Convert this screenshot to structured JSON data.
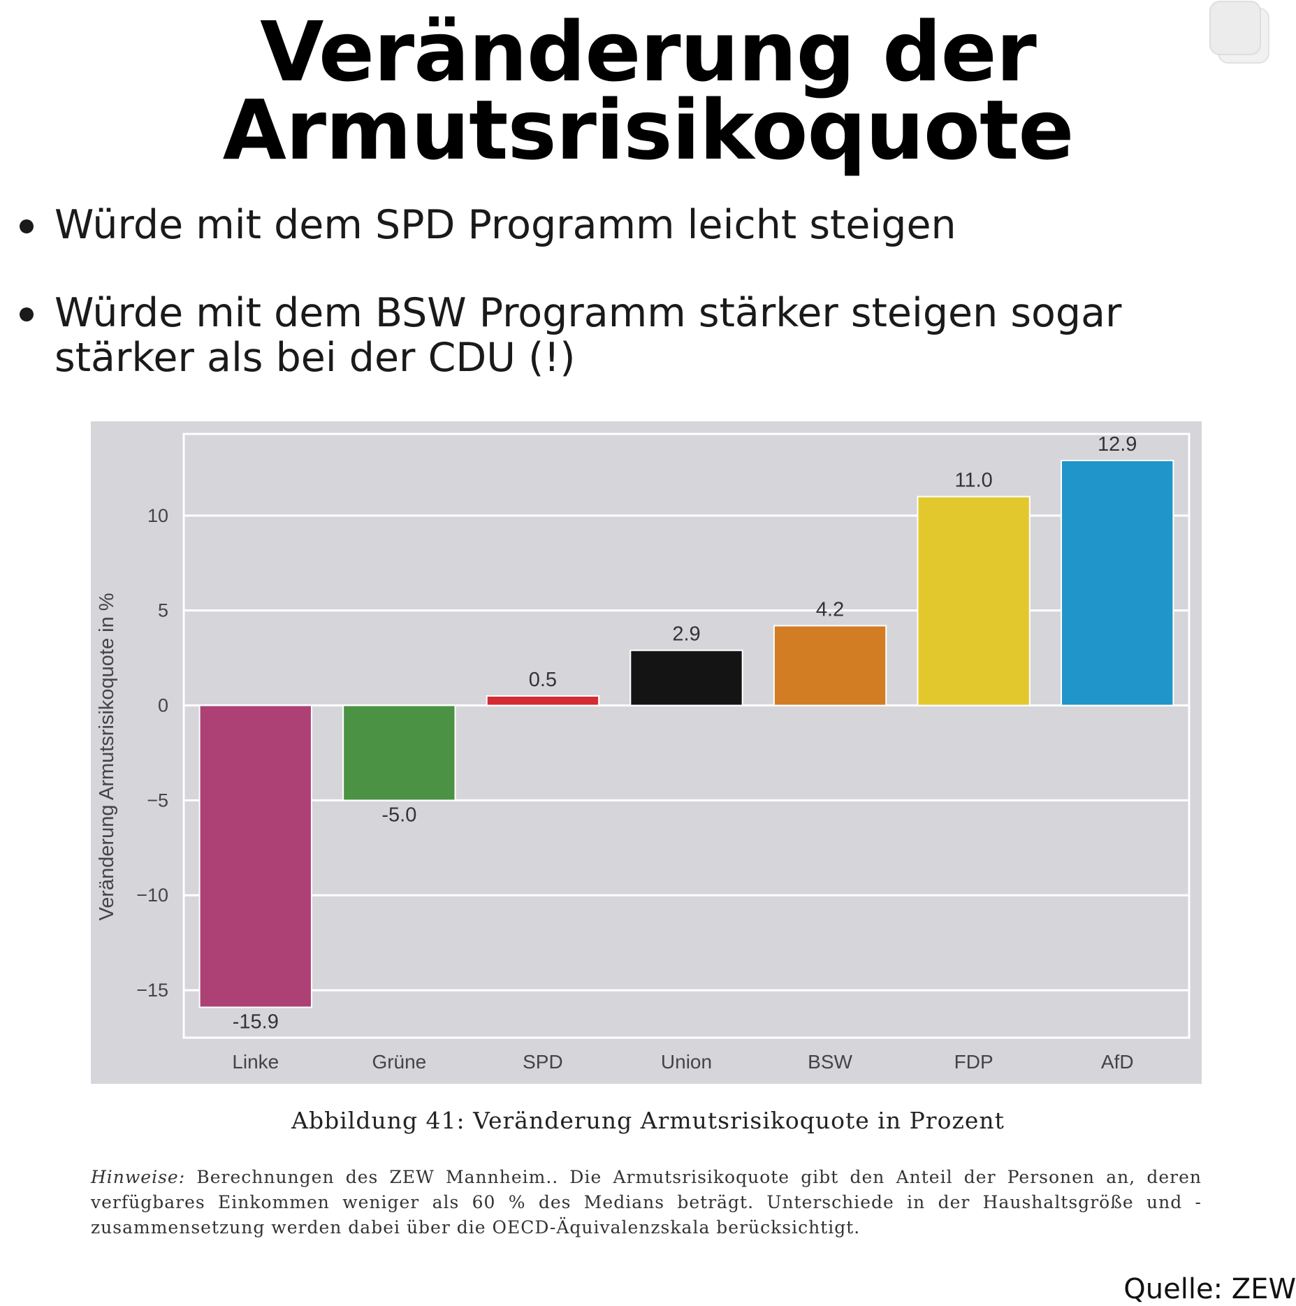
{
  "title": {
    "line1": "Veränderung der",
    "line2": "Armutsrisikoquote"
  },
  "bullets": [
    "Würde mit dem SPD Programm leicht steigen",
    "Würde mit dem BSW Programm stärker steigen sogar stärker als bei der CDU (!)"
  ],
  "chart_data": {
    "type": "bar",
    "categories": [
      "Linke",
      "Grüne",
      "SPD",
      "Union",
      "BSW",
      "FDP",
      "AfD"
    ],
    "values": [
      -15.9,
      -5.0,
      0.5,
      2.9,
      4.2,
      11.0,
      12.9
    ],
    "value_labels": [
      "-15.9",
      "-5.0",
      "0.5",
      "2.9",
      "4.2",
      "11.0",
      "12.9"
    ],
    "colors": [
      "#ad4074",
      "#4b9244",
      "#d42a32",
      "#141414",
      "#d27c24",
      "#e3c82d",
      "#1f95c9"
    ],
    "ylabel": "Veränderung Armutsrisikoquote in %",
    "ylim": [
      -17.5,
      14.3
    ],
    "yticks": [
      10,
      5,
      0,
      -5,
      -10,
      -15
    ],
    "ytick_labels": [
      "10",
      "5",
      "0",
      "−5",
      "−10",
      "−15"
    ],
    "grid": true,
    "background": "#d6d5da"
  },
  "caption": "Abbildung 41: Veränderung Armutsrisikoquote in Prozent",
  "notes": {
    "label": "Hinweise:",
    "text": "Berechnungen des ZEW Mannheim.. Die Armutsrisikoquote gibt den Anteil der Personen an, deren verfügbares Einkommen weniger als 60 % des Medians beträgt. Unterschiede in der Haushaltsgröße und -zusammensetzung werden dabei über die OECD-Äquivalenzskala berücksichtigt."
  },
  "source": "Quelle: ZEW",
  "icons": {
    "corner": "copy-icon"
  }
}
